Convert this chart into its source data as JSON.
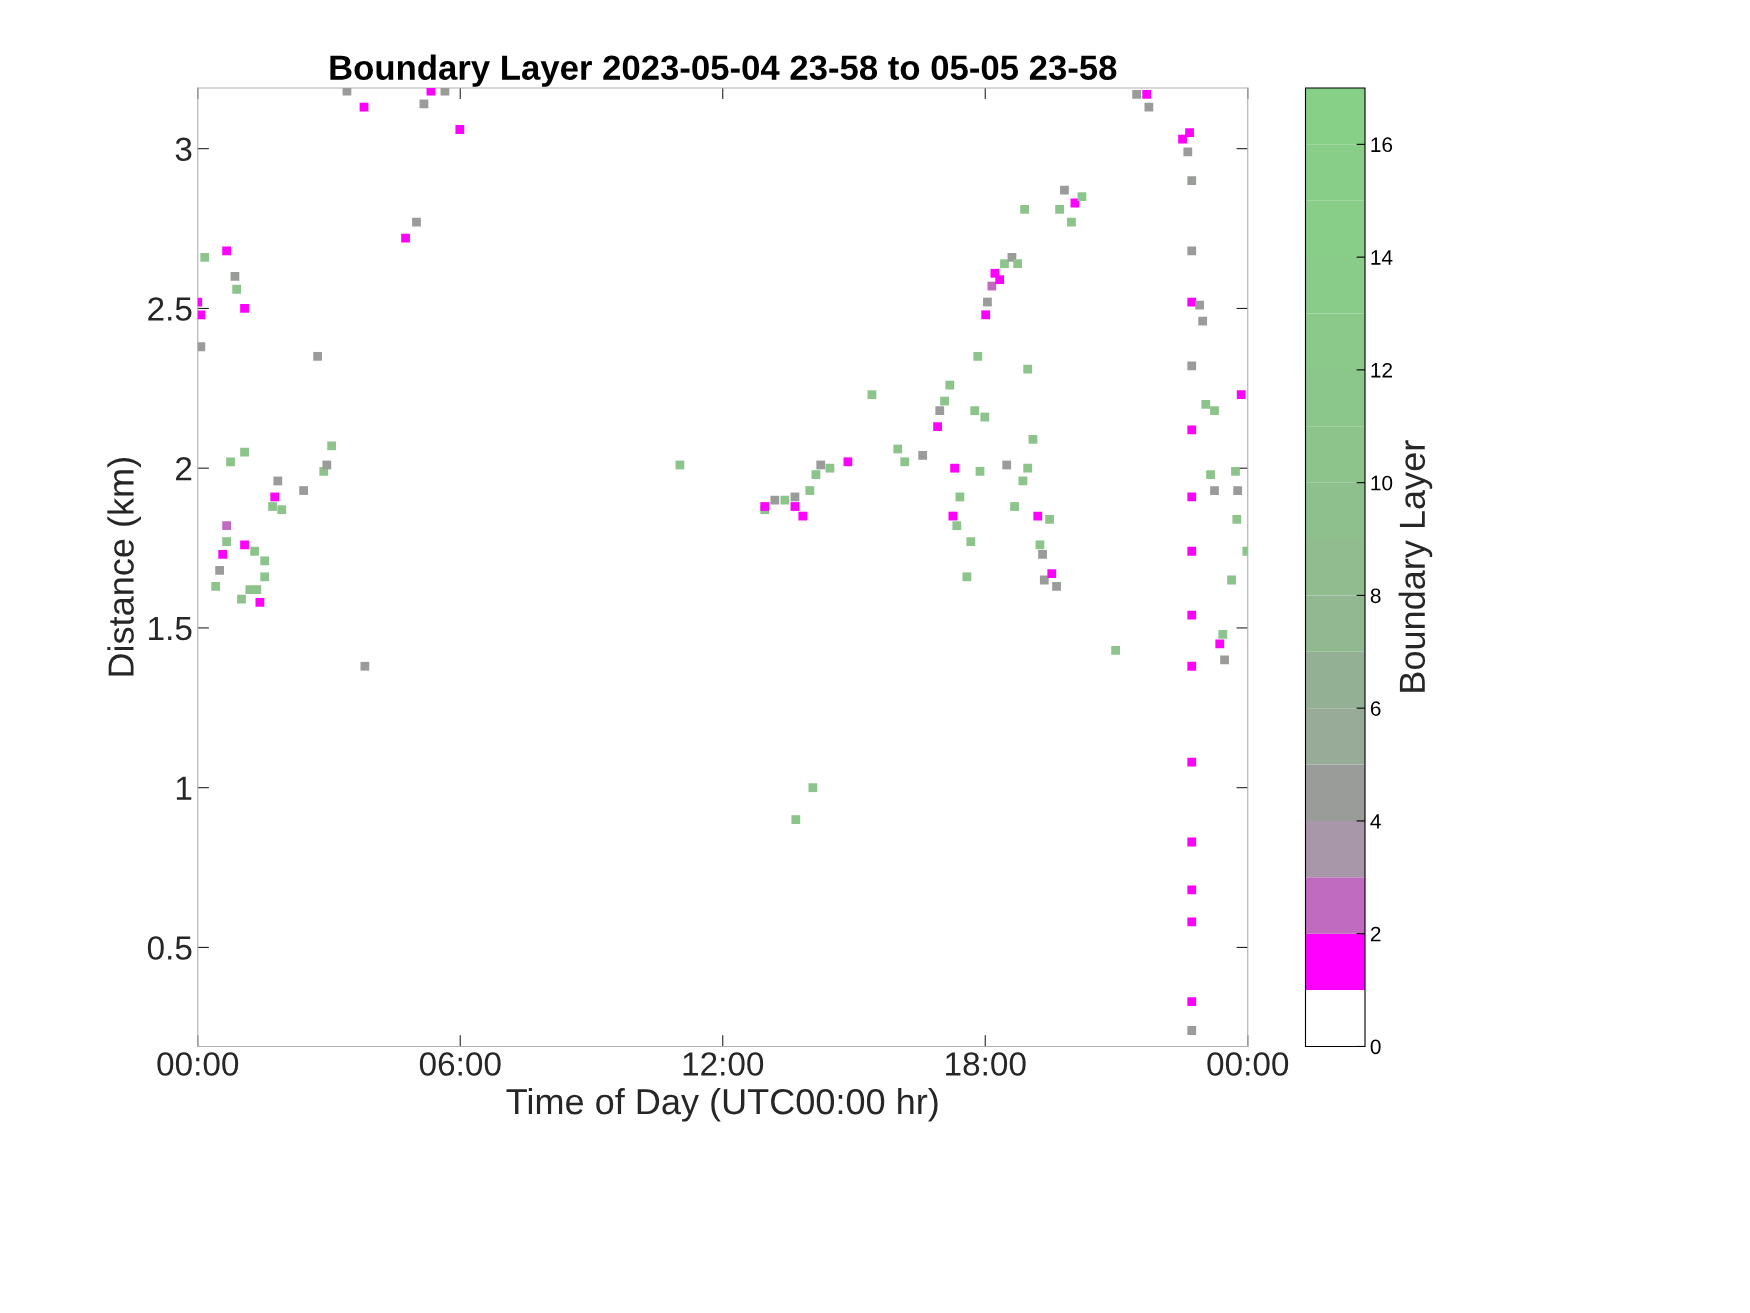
{
  "chart_data": {
    "type": "scatter",
    "title": "Boundary Layer 2023-05-04 23-58 to 05-05 23-58",
    "xlabel": "Time of Day (UTC00:00 hr)",
    "ylabel": "Distance (km)",
    "clabel": "Boundary Layer",
    "xlim": [
      0,
      24
    ],
    "xticks": [
      {
        "value": 0,
        "label": "00:00"
      },
      {
        "value": 6,
        "label": "06:00"
      },
      {
        "value": 12,
        "label": "12:00"
      },
      {
        "value": 18,
        "label": "18:00"
      },
      {
        "value": 24,
        "label": "00:00"
      }
    ],
    "ylim": [
      0.19,
      3.19
    ],
    "yticks": [
      0.5,
      1,
      1.5,
      2,
      2.5,
      3
    ],
    "clim": [
      0,
      17
    ],
    "cticks": [
      0,
      2,
      4,
      6,
      8,
      10,
      12,
      14,
      16
    ],
    "marker": "square",
    "grid": false,
    "x": [
      0,
      0.07,
      0.07,
      0.16,
      0.66,
      0.85,
      0.89,
      1.07,
      0.75,
      1.07,
      0.5,
      0.57,
      0.66,
      0.41,
      0.66,
      1.0,
      1.19,
      1.35,
      1.42,
      1.07,
      1.3,
      1.53,
      1.53,
      1.71,
      1.76,
      1.83,
      1.92,
      2.42,
      2.74,
      2.88,
      2.95,
      3.06,
      3.41,
      3.8,
      3.82,
      4.75,
      5.0,
      5.17,
      5.33,
      5.65,
      5.99,
      11.02,
      12.96,
      13.19,
      12.96,
      13.42,
      13.65,
      13.83,
      13.65,
      13.99,
      14.13,
      14.24,
      14.45,
      14.86,
      13.67,
      14.06,
      15.41,
      16.0,
      16.16,
      16.57,
      16.91,
      16.96,
      17.07,
      17.19,
      17.3,
      17.26,
      17.35,
      17.42,
      17.58,
      17.67,
      17.76,
      17.83,
      17.99,
      17.88,
      18.01,
      18.05,
      18.15,
      18.22,
      18.33,
      18.44,
      18.61,
      18.74,
      18.49,
      18.67,
      18.86,
      18.97,
      18.9,
      18.97,
      19.09,
      19.2,
      19.25,
      19.31,
      19.47,
      19.35,
      19.52,
      19.63,
      19.7,
      19.81,
      19.97,
      20.05,
      20.21,
      20.98,
      21.46,
      21.69,
      21.74,
      22.51,
      22.67,
      22.63,
      22.72,
      22.72,
      22.72,
      22.9,
      22.97,
      22.72,
      22.72,
      22.72,
      22.72,
      22.72,
      22.72,
      22.72,
      22.72,
      22.72,
      22.72,
      22.72,
      22.72,
      23.04,
      23.24,
      23.15,
      23.24,
      23.36,
      23.43,
      23.47,
      23.63,
      23.72,
      23.77,
      23.75,
      23.85,
      23.98
    ],
    "values": [
      2.52,
      2.48,
      2.38,
      2.66,
      2.68,
      2.6,
      2.56,
      2.5,
      2.02,
      2.05,
      1.68,
      1.73,
      1.77,
      1.63,
      1.82,
      1.59,
      1.62,
      1.62,
      1.58,
      1.76,
      1.74,
      1.71,
      1.66,
      1.88,
      1.91,
      1.96,
      1.87,
      1.93,
      2.35,
      1.99,
      2.01,
      2.07,
      3.18,
      3.13,
      1.38,
      2.72,
      2.77,
      3.14,
      3.18,
      3.18,
      3.06,
      2.01,
      1.87,
      1.9,
      1.88,
      1.9,
      1.88,
      1.85,
      1.91,
      1.93,
      1.98,
      2.01,
      2.0,
      2.02,
      0.9,
      1.0,
      2.23,
      2.06,
      2.02,
      2.04,
      2.13,
      2.18,
      2.21,
      2.26,
      2.0,
      1.85,
      1.82,
      1.91,
      1.66,
      1.77,
      2.18,
      2.35,
      2.16,
      1.99,
      2.48,
      2.52,
      2.57,
      2.61,
      2.59,
      2.64,
      2.66,
      2.64,
      2.01,
      1.88,
      1.96,
      2.0,
      2.81,
      2.31,
      2.09,
      1.85,
      1.76,
      1.73,
      1.84,
      1.65,
      1.67,
      1.63,
      2.81,
      2.87,
      2.77,
      2.83,
      2.85,
      1.43,
      3.17,
      3.17,
      3.13,
      3.03,
      3.05,
      2.99,
      2.9,
      2.68,
      2.52,
      2.51,
      2.46,
      2.32,
      2.12,
      1.91,
      1.74,
      1.54,
      1.38,
      1.08,
      0.83,
      0.68,
      0.58,
      0.33,
      0.24,
      2.2,
      2.18,
      1.98,
      1.93,
      1.45,
      1.48,
      1.4,
      1.65,
      1.99,
      1.93,
      1.84,
      2.23,
      1.74
    ],
    "cvalues": [
      1.5,
      1.5,
      4.5,
      10,
      1.5,
      4.5,
      10,
      1.5,
      10,
      10,
      4.5,
      1.5,
      10,
      10,
      2.5,
      10,
      10,
      10,
      1.5,
      1.5,
      10,
      10,
      10,
      10,
      1.5,
      4.5,
      10,
      4.5,
      4.5,
      10,
      4.5,
      10,
      4.5,
      1.5,
      4.5,
      1.5,
      4.5,
      4.5,
      1.5,
      4.5,
      1.5,
      10,
      10,
      4.5,
      1.5,
      10,
      1.5,
      1.5,
      4.5,
      10,
      10,
      4.5,
      10,
      1.5,
      10,
      10,
      10,
      10,
      10,
      4.5,
      1.5,
      4.5,
      10,
      10,
      1.5,
      1.5,
      10,
      10,
      10,
      10,
      10,
      10,
      10,
      10,
      1.5,
      4.5,
      2.5,
      1.5,
      1.5,
      10,
      4.5,
      10,
      4.5,
      10,
      10,
      10,
      10,
      10,
      10,
      1.5,
      10,
      4.5,
      10,
      4.5,
      1.5,
      4.5,
      10,
      4.5,
      10,
      1.5,
      10,
      10,
      4.5,
      1.5,
      4.5,
      1.5,
      1.5,
      4.5,
      4.5,
      4.5,
      1.5,
      4.5,
      4.5,
      4.5,
      1.5,
      1.5,
      1.5,
      1.5,
      1.5,
      1.5,
      1.5,
      1.5,
      1.5,
      1.5,
      4.5,
      10,
      10,
      10,
      4.5,
      1.5,
      10,
      4.5,
      10,
      10,
      4.5,
      10,
      1.5,
      10
    ]
  }
}
